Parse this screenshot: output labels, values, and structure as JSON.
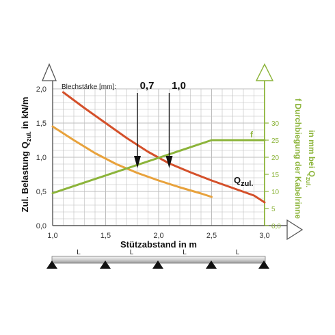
{
  "chart_data": {
    "type": "line",
    "xlabel": "Stützabstand in m",
    "ylabel": "Zul. Belastung Q",
    "ylabel_sub": "zul.",
    "ylabel_unit": " in kN/m",
    "y2label_line1": "f Durchbiegung der Kabelrinne",
    "y2label_line2": "in mm bei Q",
    "y2label_sub": "zul.",
    "xlim": [
      1.0,
      3.0
    ],
    "ylim": [
      0,
      2.0
    ],
    "y2lim": [
      0,
      40
    ],
    "x_ticks": [
      "1,0",
      "1,5",
      "2,0",
      "2,5",
      "3,0"
    ],
    "y_ticks": [
      "0,0",
      "0,5",
      "1,0",
      "1,5",
      "2,0"
    ],
    "y2_ticks": [
      "0,0",
      "5",
      "10",
      "15",
      "20",
      "25",
      "30"
    ],
    "grid": true,
    "thickness_label": "Blechstärke [mm]:",
    "thickness_values": [
      "0,7",
      "1,0"
    ],
    "series": [
      {
        "name": "Q",
        "name_sub": "zul.",
        "thickness": "1,0",
        "color": "#d4502a",
        "axis": "left",
        "x": [
          1.1,
          1.3,
          1.5,
          1.7,
          1.9,
          2.1,
          2.3,
          2.5,
          2.7,
          2.9,
          3.0
        ],
        "y": [
          1.95,
          1.72,
          1.5,
          1.28,
          1.08,
          0.91,
          0.78,
          0.66,
          0.55,
          0.44,
          0.34
        ]
      },
      {
        "name": "",
        "thickness": "0,7",
        "color": "#e8a23c",
        "axis": "left",
        "x": [
          1.0,
          1.2,
          1.4,
          1.6,
          1.8,
          2.0,
          2.2,
          2.4,
          2.5
        ],
        "y": [
          1.45,
          1.25,
          1.06,
          0.9,
          0.77,
          0.66,
          0.56,
          0.47,
          0.42
        ]
      },
      {
        "name": "f",
        "color": "#8cb43a",
        "axis": "right",
        "x": [
          1.0,
          2.5,
          3.0
        ],
        "y": [
          9.5,
          25,
          25
        ]
      }
    ],
    "markers": [
      {
        "label": "0,7",
        "x": 1.8
      },
      {
        "label": "1,0",
        "x": 2.1
      }
    ]
  },
  "beam": {
    "span_label": "L",
    "spans": 4
  },
  "colors": {
    "q10": "#d4502a",
    "q07": "#e8a23c",
    "deflection": "#8cb43a",
    "grid": "#bdbdbd"
  }
}
